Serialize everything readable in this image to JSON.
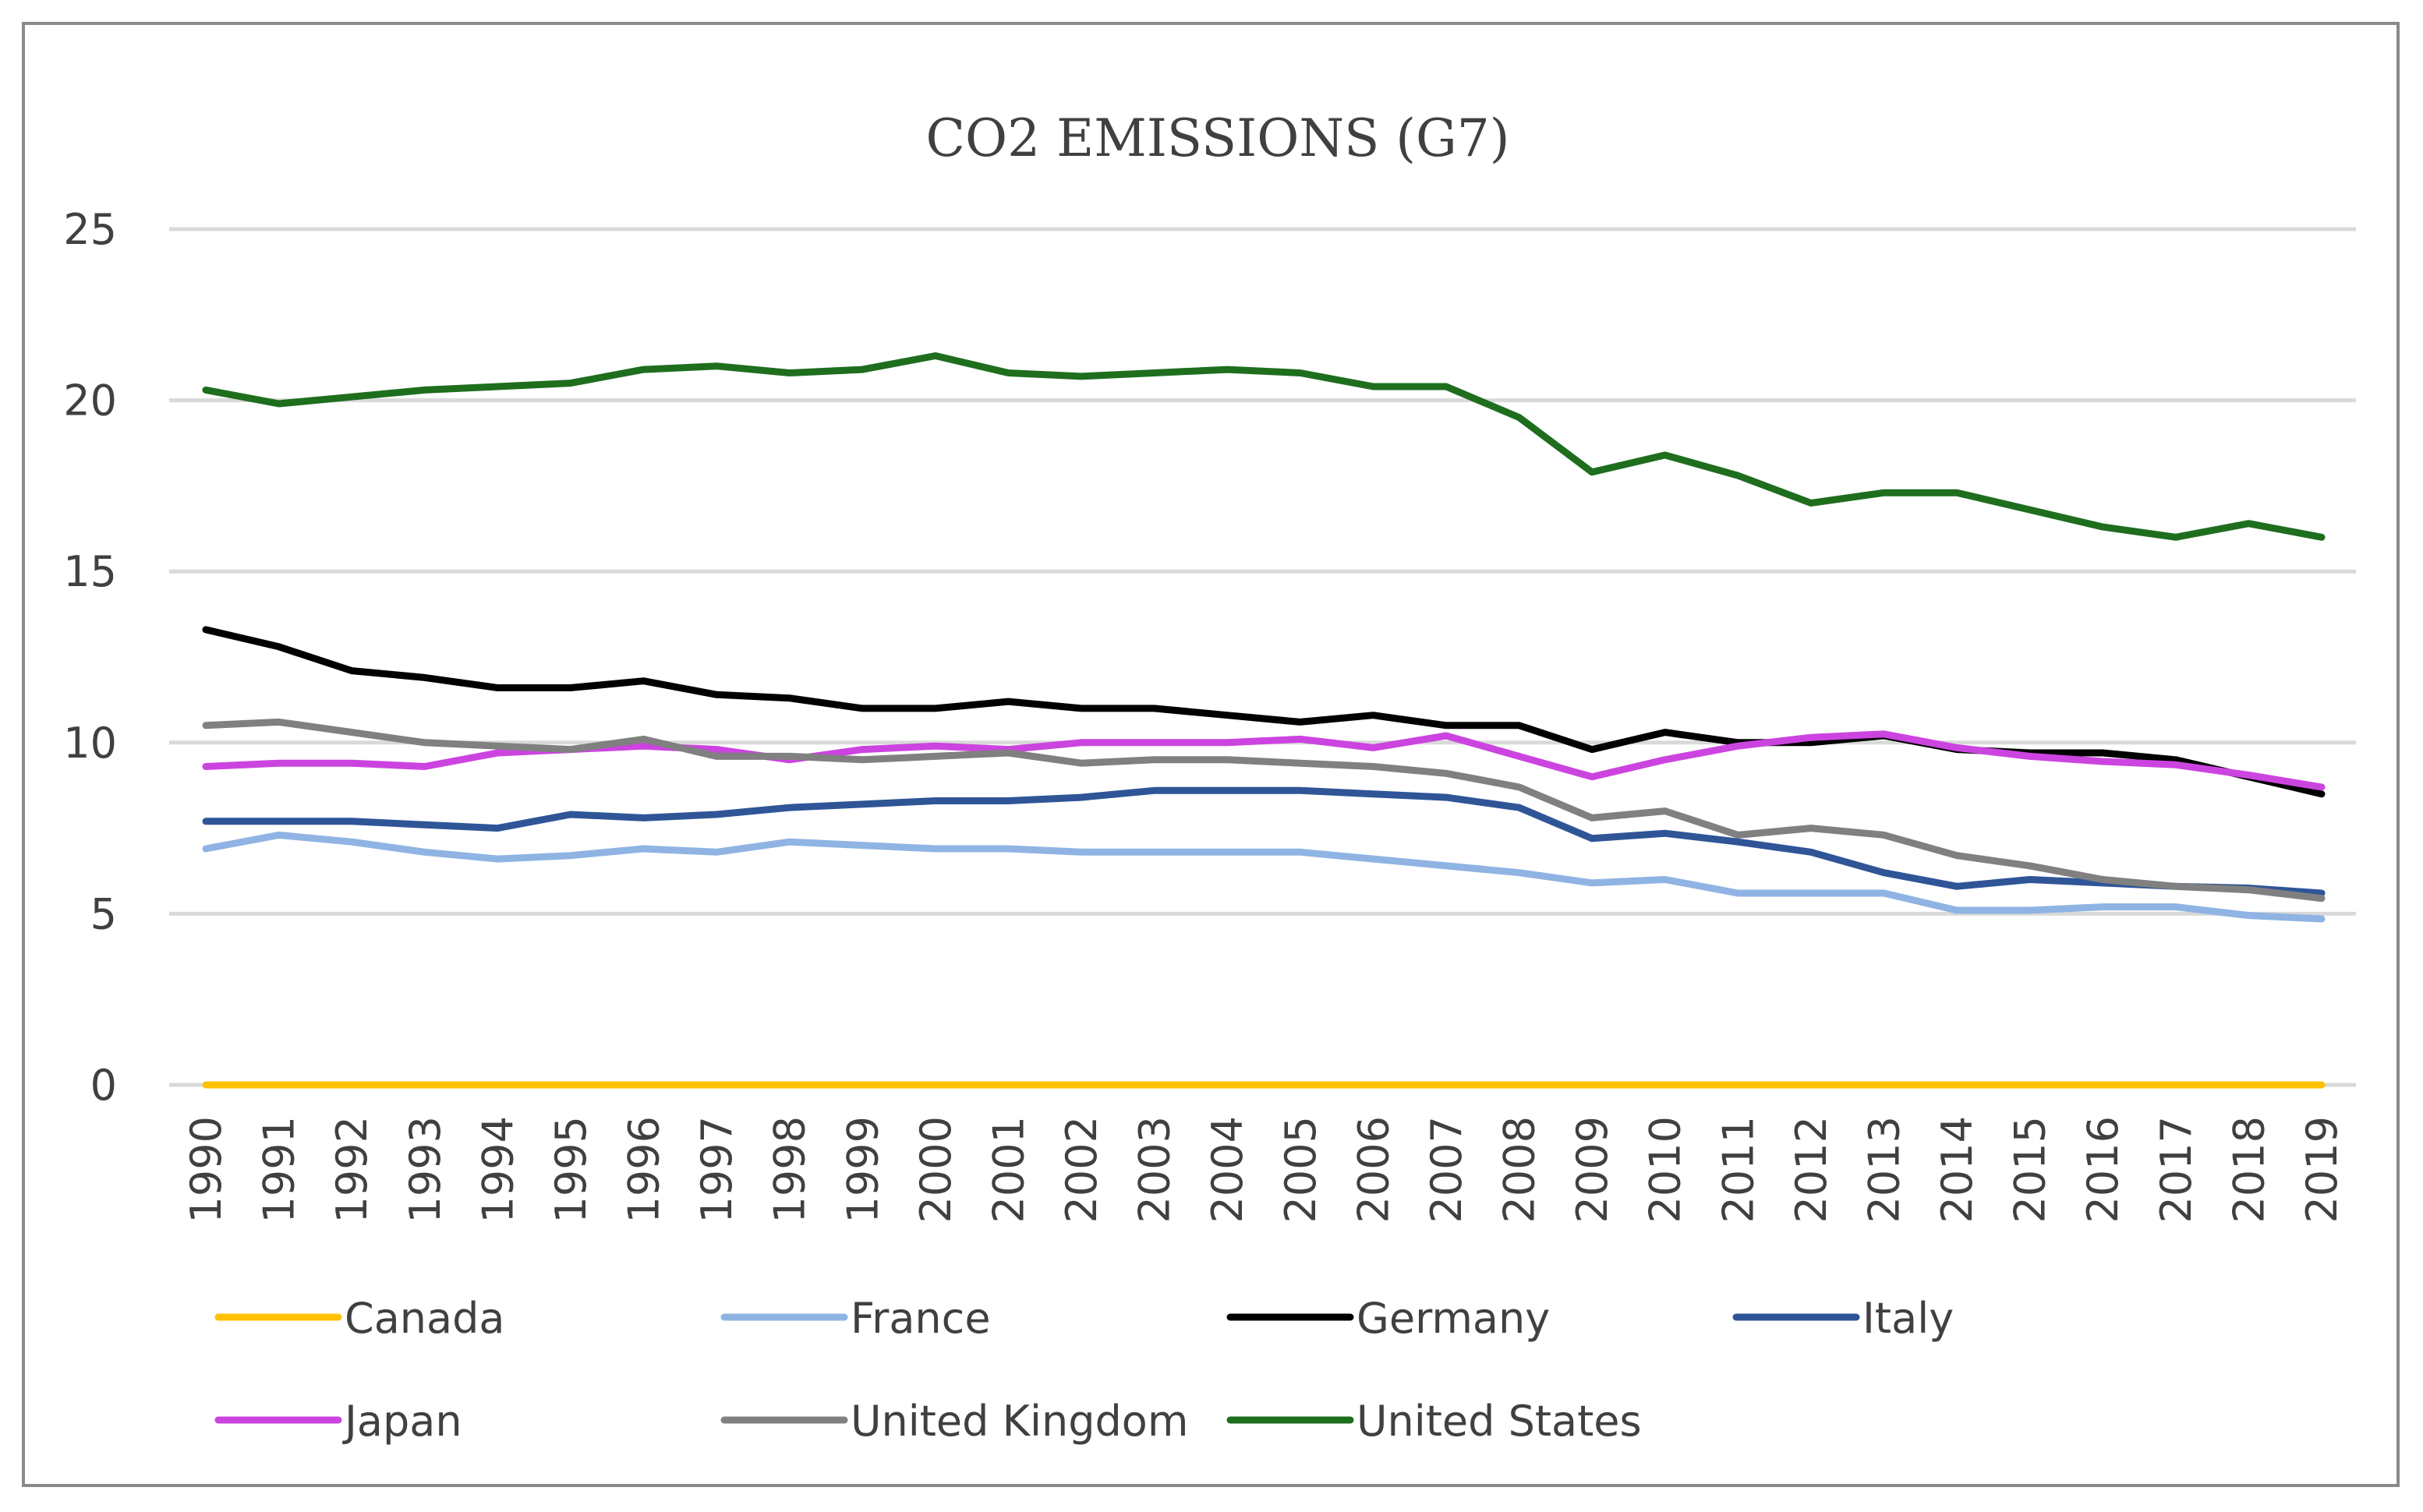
{
  "chart_data": {
    "type": "line",
    "title": "CO2 EMISSIONS (G7)",
    "xlabel": "",
    "ylabel": "",
    "ylim": [
      0,
      25
    ],
    "y_ticks": [
      "0",
      "5",
      "10",
      "15",
      "20",
      "25"
    ],
    "grid": true,
    "legend_position": "bottom",
    "categories": [
      "1990",
      "1991",
      "1992",
      "1993",
      "1994",
      "1995",
      "1996",
      "1997",
      "1998",
      "1999",
      "2000",
      "2001",
      "2002",
      "2003",
      "2004",
      "2005",
      "2006",
      "2007",
      "2008",
      "2009",
      "2010",
      "2011",
      "2012",
      "2013",
      "2014",
      "2015",
      "2016",
      "2017",
      "2018",
      "2019"
    ],
    "series": [
      {
        "name": "Canada",
        "color": "#ffc000",
        "values": [
          0,
          0,
          0,
          0,
          0,
          0,
          0,
          0,
          0,
          0,
          0,
          0,
          0,
          0,
          0,
          0,
          0,
          0,
          0,
          0,
          0,
          0,
          0,
          0,
          0,
          0,
          0,
          0,
          0,
          0
        ]
      },
      {
        "name": "France",
        "color": "#8fb4e3",
        "values": [
          6.9,
          7.3,
          7.1,
          6.8,
          6.6,
          6.7,
          6.9,
          6.8,
          7.1,
          7.0,
          6.9,
          6.9,
          6.8,
          6.8,
          6.8,
          6.8,
          6.6,
          6.4,
          6.2,
          5.9,
          6.0,
          5.6,
          5.6,
          5.6,
          5.1,
          5.1,
          5.2,
          5.2,
          4.95,
          4.85
        ]
      },
      {
        "name": "Germany",
        "color": "#000000",
        "values": [
          13.3,
          12.8,
          12.1,
          11.9,
          11.6,
          11.6,
          11.8,
          11.4,
          11.3,
          11.0,
          11.0,
          11.2,
          11.0,
          11.0,
          10.8,
          10.6,
          10.8,
          10.5,
          10.5,
          9.8,
          10.3,
          10.0,
          10.0,
          10.2,
          9.8,
          9.7,
          9.7,
          9.5,
          9.0,
          8.5
        ]
      },
      {
        "name": "Italy",
        "color": "#2f5597",
        "values": [
          7.7,
          7.7,
          7.7,
          7.6,
          7.5,
          7.9,
          7.8,
          7.9,
          8.1,
          8.2,
          8.3,
          8.3,
          8.4,
          8.6,
          8.6,
          8.6,
          8.5,
          8.4,
          8.1,
          7.2,
          7.35,
          7.1,
          6.8,
          6.2,
          5.8,
          6.0,
          5.9,
          5.8,
          5.75,
          5.6
        ]
      },
      {
        "name": "Japan",
        "color": "#cc44e0",
        "values": [
          9.3,
          9.4,
          9.4,
          9.3,
          9.7,
          9.8,
          9.9,
          9.8,
          9.5,
          9.8,
          9.9,
          9.8,
          10.0,
          10.0,
          10.0,
          10.1,
          9.85,
          10.2,
          9.6,
          9.0,
          9.5,
          9.9,
          10.15,
          10.25,
          9.85,
          9.6,
          9.45,
          9.35,
          9.05,
          8.7
        ]
      },
      {
        "name": "United Kingdom",
        "color": "#808080",
        "values": [
          10.5,
          10.6,
          10.3,
          10.0,
          9.9,
          9.8,
          10.1,
          9.6,
          9.6,
          9.5,
          9.6,
          9.7,
          9.4,
          9.5,
          9.5,
          9.4,
          9.3,
          9.1,
          8.7,
          7.8,
          8.0,
          7.3,
          7.5,
          7.3,
          6.7,
          6.4,
          6.0,
          5.8,
          5.7,
          5.45
        ]
      },
      {
        "name": "United States",
        "color": "#1e6e1e",
        "values": [
          20.3,
          19.9,
          20.1,
          20.3,
          20.4,
          20.5,
          20.9,
          21.0,
          20.8,
          20.9,
          21.3,
          20.8,
          20.7,
          20.8,
          20.9,
          20.8,
          20.4,
          20.4,
          19.5,
          17.9,
          18.4,
          17.8,
          17.0,
          17.3,
          17.3,
          16.8,
          16.3,
          16.0,
          16.4,
          16.0
        ]
      }
    ]
  }
}
